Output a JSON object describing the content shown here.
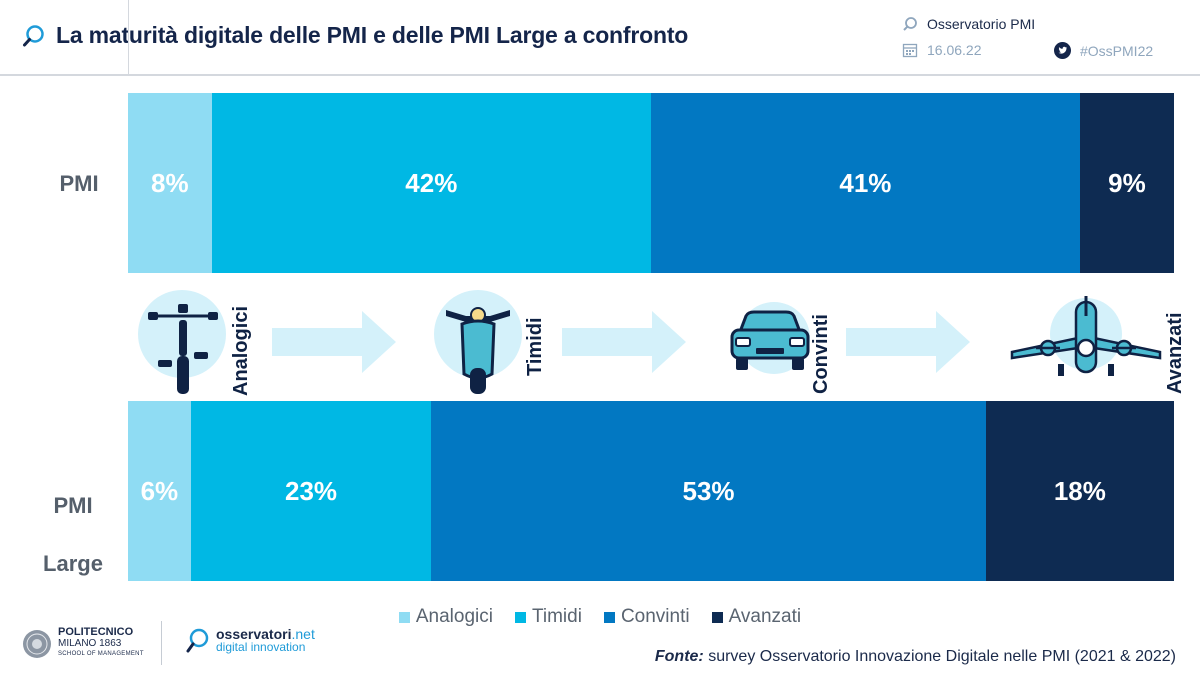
{
  "header": {
    "title": "La maturità digitale delle PMI e delle PMI Large a confronto",
    "organization": "Osservatorio PMI",
    "date": "16.06.22",
    "hashtag": "#OssPMI22"
  },
  "colors": {
    "Analogici": "#8fdcf3",
    "Timidi": "#00b8e4",
    "Convinti": "#0278c2",
    "Avanzati": "#0e2b52"
  },
  "chart_data": {
    "type": "bar",
    "orientation": "horizontal",
    "stacked": true,
    "categories": [
      "PMI",
      "PMI Large"
    ],
    "series": [
      {
        "name": "Analogici",
        "values": [
          8,
          6
        ]
      },
      {
        "name": "Timidi",
        "values": [
          42,
          23
        ]
      },
      {
        "name": "Convinti",
        "values": [
          41,
          53
        ]
      },
      {
        "name": "Avanzati",
        "values": [
          9,
          18
        ]
      }
    ],
    "value_labels": [
      [
        "8%",
        "42%",
        "41%",
        "9%"
      ],
      [
        "6%",
        "23%",
        "53%",
        "18%"
      ]
    ],
    "unit": "%",
    "legend_position": "bottom",
    "grid": false
  },
  "stages": [
    {
      "label": "Analogici",
      "icon": "bicycle-icon"
    },
    {
      "label": "Timidi",
      "icon": "scooter-icon"
    },
    {
      "label": "Convinti",
      "icon": "car-icon"
    },
    {
      "label": "Avanzati",
      "icon": "airplane-icon"
    }
  ],
  "source": {
    "label": "Fonte:",
    "text": " survey Osservatorio Innovazione Digitale nelle PMI (2021 & 2022)"
  },
  "logos": {
    "politecnico_name": "POLITECNICO",
    "politecnico_city": "MILANO 1863",
    "politecnico_school": "SCHOOL OF MANAGEMENT",
    "osservatori_name": "osservatori",
    "osservatori_tld": ".net",
    "osservatori_tagline": "digital innovation"
  }
}
